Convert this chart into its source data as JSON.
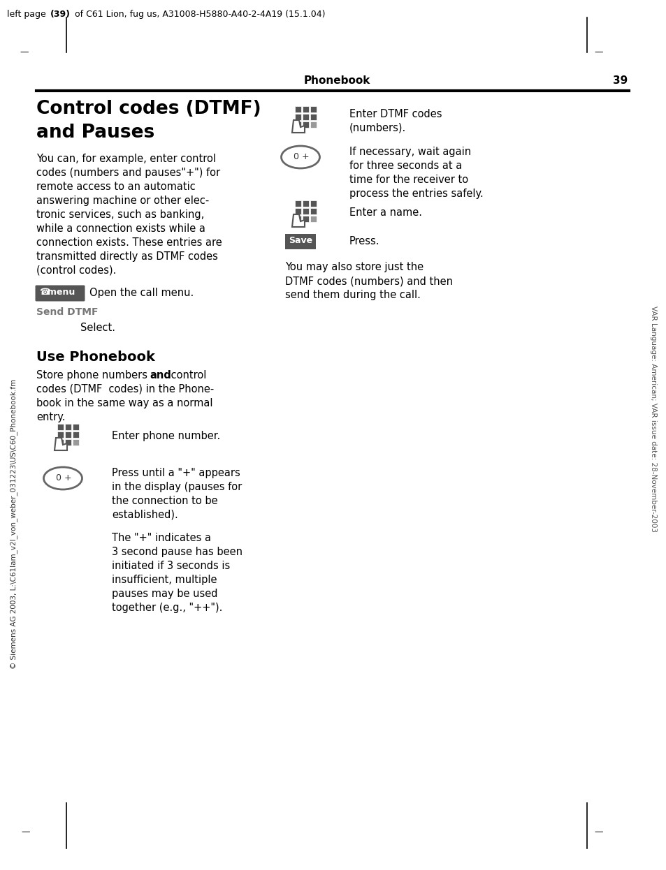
{
  "page_header_normal": "left page (39) of C61 Lion, fug us, A31008-H5880-A40-2-4A19 (15.1.04)",
  "page_header_bold": "left page (39)",
  "section_header": "Phonebook",
  "page_number": "39",
  "body_lines": [
    "You can, for example, enter control",
    "codes (numbers and pauses\"+\") for",
    "remote access to an automatic",
    "answering machine or other elec-",
    "tronic services, such as banking,",
    "while a connection exists while a",
    "connection exists. These entries are",
    "transmitted directly as DTMF codes",
    "(control codes)."
  ],
  "menu_text": "Open the call menu.",
  "send_dtmf_label": "Send DTMF",
  "send_dtmf_text": "Select.",
  "use_phonebook_title": "Use Phonebook",
  "use_pb_lines": [
    "codes (DTMF  codes) in the Phone-",
    "book in the same way as a normal",
    "entry."
  ],
  "right_text1a": "Enter DTMF codes",
  "right_text1b": "(numbers).",
  "right_text2a": "If necessary, wait again",
  "right_text2b": "for three seconds at a",
  "right_text2c": "time for the receiver to",
  "right_text2d": "process the entries safely.",
  "right_text3": "Enter a name.",
  "right_text4": "Press.",
  "right_text5a": "You may also store just the",
  "right_text5b": "DTMF codes (numbers) and then",
  "right_text5c": "send them during the call.",
  "bot_text1": "Enter phone number.",
  "bot_text2a": "Press until a \"+\" appears",
  "bot_text2b": "in the display (pauses for",
  "bot_text2c": "the connection to be",
  "bot_text2d": "established).",
  "bot_text3a": "The \"+\" indicates a",
  "bot_text3b": "3 second pause has been",
  "bot_text3c": "initiated if 3 seconds is",
  "bot_text3d": "insufficient, multiple",
  "bot_text3e": "pauses may be used",
  "bot_text3f": "together (e.g., \"++\").",
  "side_text": "VAR Language: American; VAR issue date: 28-November-2003",
  "bottom_left_text": "© Siemens AG 2003, L:\\C61lam_v2l_von_weber_031223\\US\\C60_Phonebook.fm",
  "bg_color": "#ffffff",
  "text_color": "#000000",
  "icon_color": "#666666",
  "side_text_color": "#555555"
}
